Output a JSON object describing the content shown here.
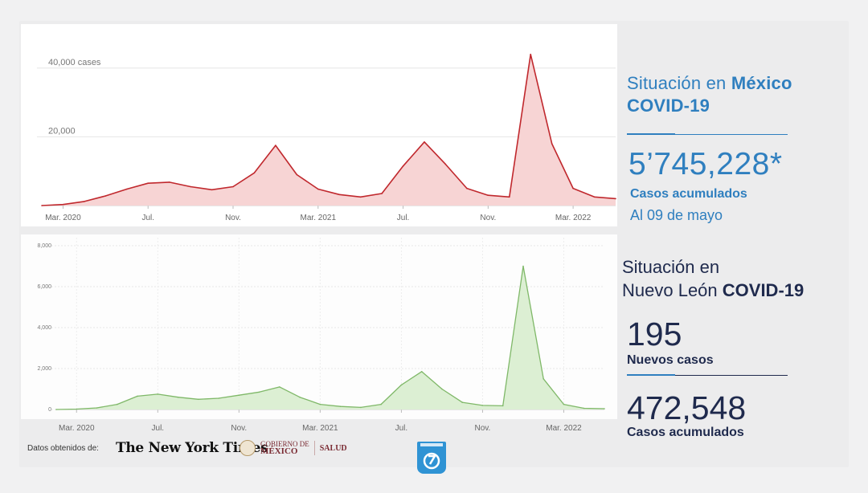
{
  "mexico": {
    "title_plain": "Situación en ",
    "title_bold": "México",
    "title_line2": "COVID-19",
    "total": "5’745,228*",
    "total_label": "Casos acumulados",
    "date_label": "Al 09 de mayo"
  },
  "nuevo_leon": {
    "title_line1": "Situación en",
    "title_plain": "Nuevo León ",
    "title_bold": "COVID-19",
    "new_cases": "195",
    "new_cases_label": "Nuevos casos",
    "total": "472,548",
    "total_label": "Casos acumulados"
  },
  "footer": {
    "source_label": "Datos obtenidos de:",
    "nyt": "The New York Times",
    "gov_line1": "GOBIERNO DE",
    "gov_line2": "MÉXICO",
    "salud": "SALUD"
  },
  "colors": {
    "mexico_line": "#c0282d",
    "mexico_fill": "#f7d4d4",
    "nl_line": "#7fb868",
    "nl_fill": "#dcefd3",
    "accent": "#2f7fbf",
    "navy": "#1f2a4d"
  },
  "chart_data": [
    {
      "type": "area",
      "x": [
        "2020-02",
        "2020-03",
        "2020-04",
        "2020-05",
        "2020-06",
        "2020-07",
        "2020-08",
        "2020-09",
        "2020-10",
        "2020-11",
        "2020-12",
        "2021-01",
        "2021-02",
        "2021-03",
        "2021-04",
        "2021-05",
        "2021-06",
        "2021-07",
        "2021-08",
        "2021-09",
        "2021-10",
        "2021-11",
        "2021-12",
        "2022-01",
        "2022-02",
        "2022-03",
        "2022-04",
        "2022-05"
      ],
      "series": [
        {
          "values": [
            0,
            300,
            1200,
            2800,
            4800,
            6500,
            6800,
            5500,
            4600,
            5500,
            9500,
            17500,
            9000,
            4800,
            3200,
            2500,
            3500,
            11500,
            18500,
            12000,
            5000,
            3000,
            2500,
            44000,
            18000,
            5000,
            2500,
            2000
          ]
        }
      ],
      "x_ticks": [
        "Mar. 2020",
        "Jul.",
        "Nov.",
        "Mar. 2021",
        "Jul.",
        "Nov.",
        "Mar. 2022"
      ],
      "y_ticks": [
        "20,000",
        "40,000 cases"
      ],
      "ylim": [
        0,
        50000
      ],
      "grid": true
    },
    {
      "type": "area",
      "x": [
        "2020-02",
        "2020-03",
        "2020-04",
        "2020-05",
        "2020-06",
        "2020-07",
        "2020-08",
        "2020-09",
        "2020-10",
        "2020-11",
        "2020-12",
        "2021-01",
        "2021-02",
        "2021-03",
        "2021-04",
        "2021-05",
        "2021-06",
        "2021-07",
        "2021-08",
        "2021-09",
        "2021-10",
        "2021-11",
        "2021-12",
        "2022-01",
        "2022-02",
        "2022-03",
        "2022-04",
        "2022-05"
      ],
      "series": [
        {
          "values": [
            0,
            20,
            80,
            250,
            650,
            750,
            600,
            500,
            550,
            700,
            850,
            1100,
            600,
            250,
            150,
            100,
            250,
            1200,
            1850,
            1000,
            350,
            200,
            180,
            7000,
            1500,
            250,
            60,
            40
          ]
        }
      ],
      "x_ticks": [
        "Mar. 2020",
        "Jul.",
        "Nov.",
        "Mar. 2021",
        "Jul.",
        "Nov.",
        "Mar. 2022"
      ],
      "y_ticks": [
        "0",
        "2,000",
        "4,000",
        "6,000",
        "8,000"
      ],
      "ylim": [
        0,
        8000
      ],
      "grid": true
    }
  ]
}
